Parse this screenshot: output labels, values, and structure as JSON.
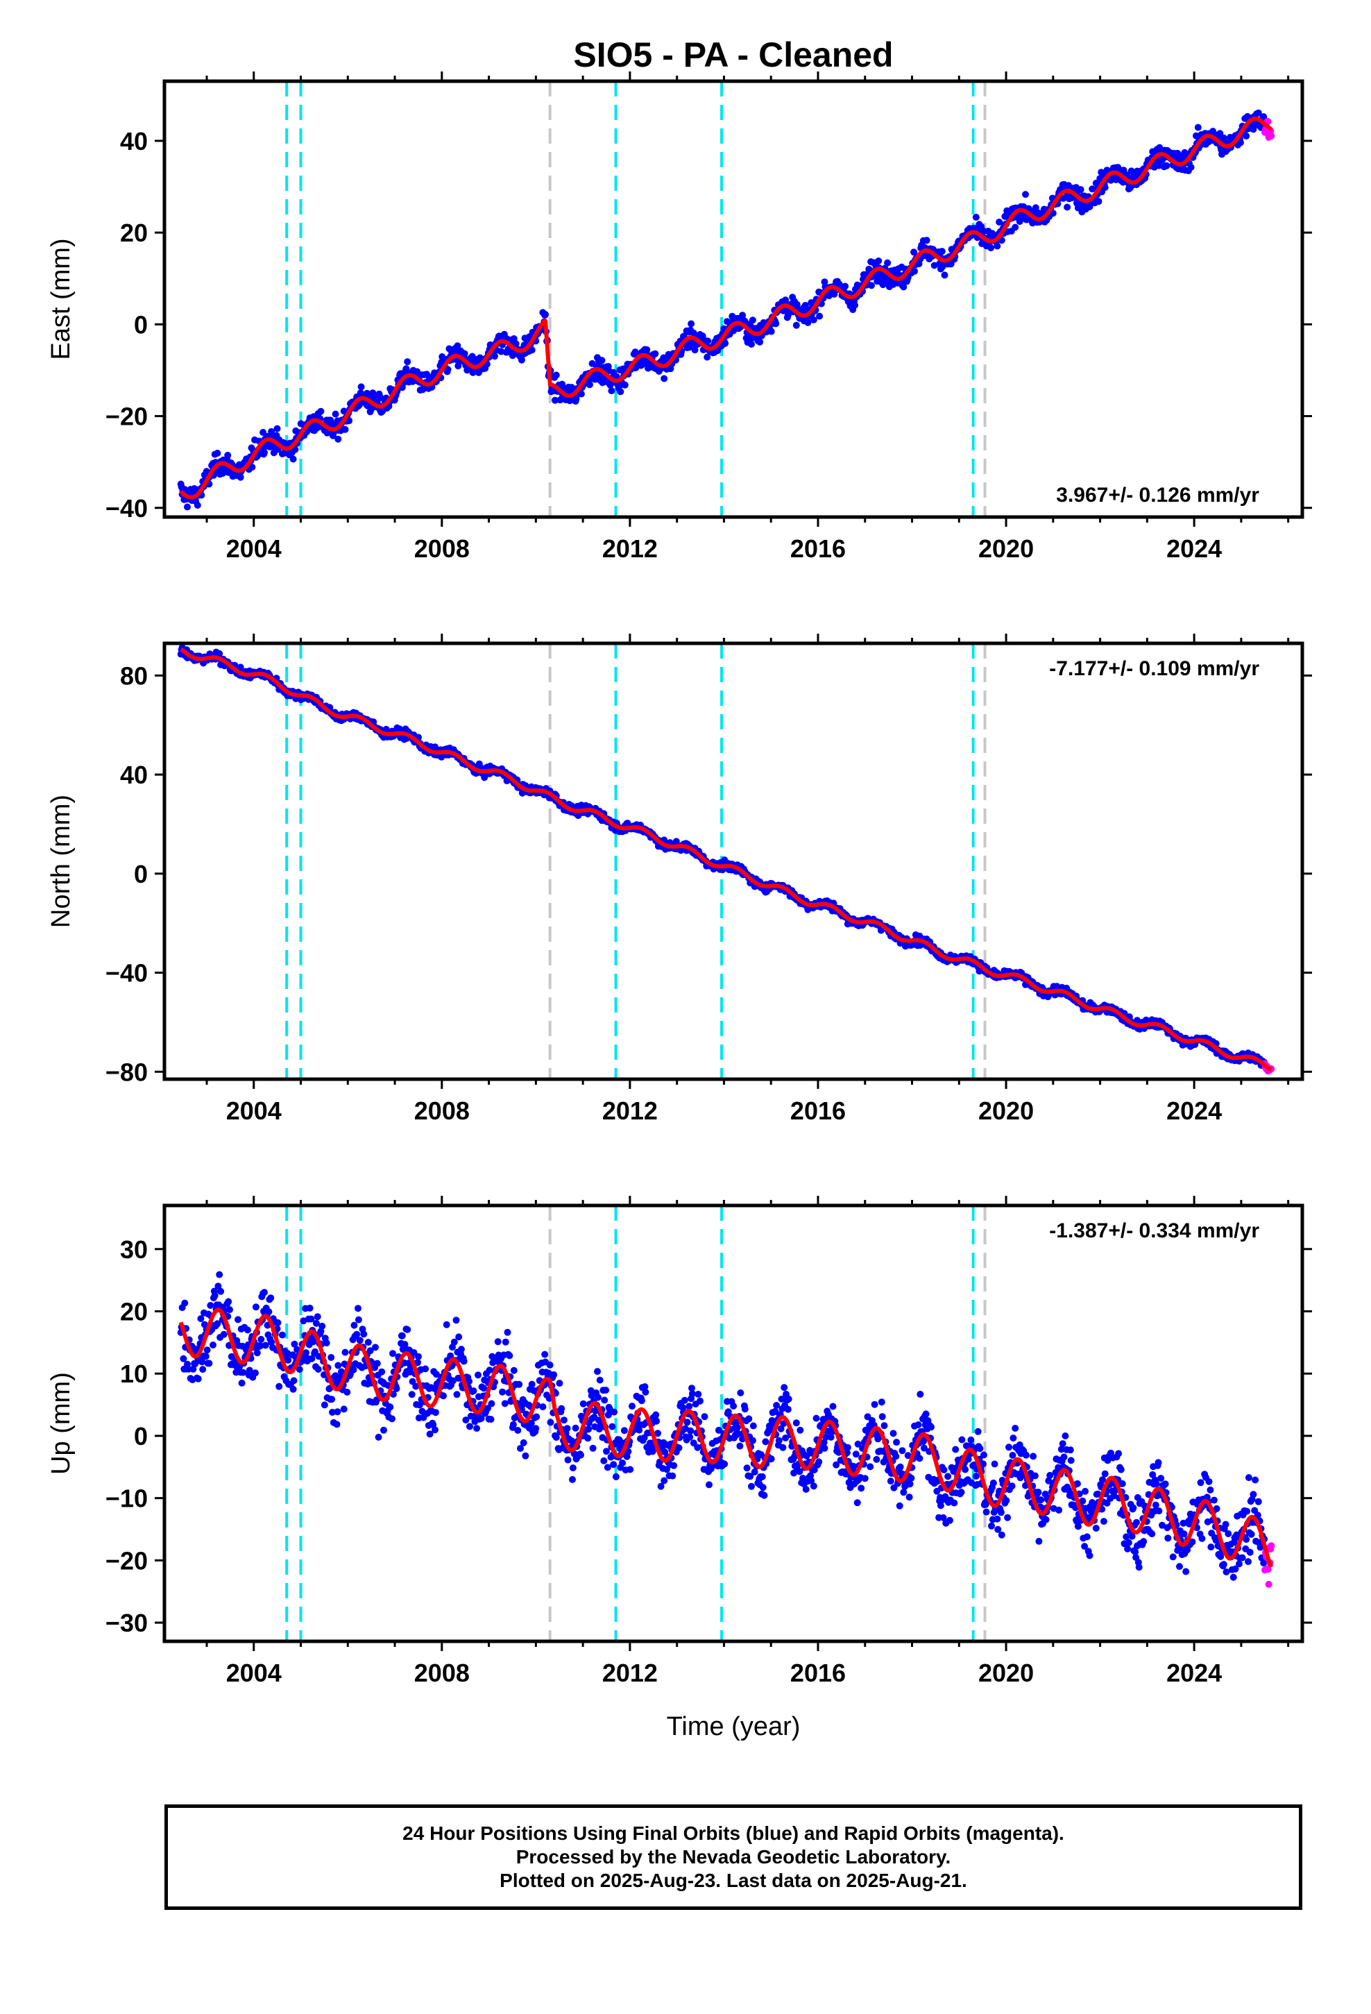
{
  "title": "SIO5  - PA - Cleaned",
  "x_axis_label": "Time (year)",
  "footer": {
    "line1": "24 Hour Positions Using Final Orbits (blue) and Rapid Orbits (magenta).",
    "line2": "Processed by the Nevada Geodetic Laboratory.",
    "line3": "Plotted on 2025-Aug-23. Last data on 2025-Aug-21."
  },
  "colors": {
    "final_orbits": "#0000ff",
    "rapid_orbits": "#ff00ff",
    "model": "#ff0000",
    "equipment_change": "#00e5ee",
    "earthquake": "#c8c8c8"
  },
  "chart_data": [
    {
      "type": "scatter",
      "ylabel": "East (mm)",
      "xlim": [
        2002.1,
        2026.3
      ],
      "ylim": [
        -42,
        53
      ],
      "x_ticks": [
        2004,
        2008,
        2012,
        2016,
        2020,
        2024
      ],
      "y_ticks": [
        -40,
        -20,
        0,
        20,
        40
      ],
      "rate_label": "3.967+/- 0.126 mm/yr",
      "rate_position": "bottom-right",
      "data_start": 2002.45,
      "data_end": 2025.64,
      "rapid_start": 2025.5,
      "offsets": [
        {
          "x": 2010.3,
          "dy": -14.0
        }
      ],
      "model_points": [
        [
          2002.5,
          -37
        ],
        [
          2003.5,
          -31
        ],
        [
          2004.5,
          -26
        ],
        [
          2005.5,
          -22
        ],
        [
          2006.5,
          -17
        ],
        [
          2007.5,
          -12
        ],
        [
          2008.5,
          -8
        ],
        [
          2009.5,
          -5
        ],
        [
          2010.2,
          -1
        ],
        [
          2010.3,
          -15
        ],
        [
          2011.5,
          -11
        ],
        [
          2012.5,
          -8
        ],
        [
          2013.5,
          -4
        ],
        [
          2014.5,
          -1
        ],
        [
          2015.5,
          3
        ],
        [
          2016.5,
          7
        ],
        [
          2017.5,
          11
        ],
        [
          2018.5,
          15
        ],
        [
          2019.5,
          19
        ],
        [
          2020.5,
          24
        ],
        [
          2021.5,
          28
        ],
        [
          2022.5,
          32
        ],
        [
          2023.5,
          36
        ],
        [
          2024.5,
          40
        ],
        [
          2025.6,
          44
        ]
      ],
      "model_seasonal_amplitude": 2.0,
      "scatter_spread": 2.0
    },
    {
      "type": "scatter",
      "ylabel": "North (mm)",
      "xlim": [
        2002.1,
        2026.3
      ],
      "ylim": [
        -83,
        93
      ],
      "x_ticks": [
        2004,
        2008,
        2012,
        2016,
        2020,
        2024
      ],
      "y_ticks": [
        -80,
        -40,
        0,
        40,
        80
      ],
      "rate_label": "-7.177+/- 0.109 mm/yr",
      "rate_position": "top-right",
      "data_start": 2002.45,
      "data_end": 2025.64,
      "rapid_start": 2025.5,
      "offsets": [],
      "model_points": [
        [
          2002.5,
          90
        ],
        [
          2003.5,
          84
        ],
        [
          2004.5,
          77
        ],
        [
          2005.5,
          67
        ],
        [
          2006.5,
          60
        ],
        [
          2007.5,
          53
        ],
        [
          2008.5,
          45
        ],
        [
          2009.5,
          38
        ],
        [
          2010.5,
          29
        ],
        [
          2011.5,
          22
        ],
        [
          2012.5,
          15
        ],
        [
          2013.5,
          7
        ],
        [
          2014.5,
          -1
        ],
        [
          2015.5,
          -9
        ],
        [
          2016.5,
          -16
        ],
        [
          2017.5,
          -23
        ],
        [
          2018.5,
          -31
        ],
        [
          2019.5,
          -38
        ],
        [
          2020.5,
          -44
        ],
        [
          2021.5,
          -51
        ],
        [
          2022.5,
          -58
        ],
        [
          2023.5,
          -64
        ],
        [
          2024.5,
          -71
        ],
        [
          2025.6,
          -78
        ]
      ],
      "model_seasonal_amplitude": 1.5,
      "scatter_spread": 1.5
    },
    {
      "type": "scatter",
      "ylabel": "Up (mm)",
      "xlim": [
        2002.1,
        2026.3
      ],
      "ylim": [
        -33,
        37
      ],
      "x_ticks": [
        2004,
        2008,
        2012,
        2016,
        2020,
        2024
      ],
      "y_ticks": [
        -30,
        -20,
        -10,
        0,
        10,
        20,
        30
      ],
      "rate_label": "-1.387+/- 0.334 mm/yr",
      "rate_position": "top-right",
      "data_start": 2002.45,
      "data_end": 2025.64,
      "rapid_start": 2025.5,
      "offsets": [],
      "model_points": [
        [
          2002.5,
          17
        ],
        [
          2003.5,
          16
        ],
        [
          2004.5,
          15
        ],
        [
          2005.5,
          12
        ],
        [
          2006.5,
          10
        ],
        [
          2007.5,
          9
        ],
        [
          2008.5,
          8
        ],
        [
          2009.5,
          7
        ],
        [
          2010.3,
          5
        ],
        [
          2010.4,
          2
        ],
        [
          2011.5,
          1
        ],
        [
          2012.5,
          0
        ],
        [
          2013.5,
          0
        ],
        [
          2014.5,
          -1
        ],
        [
          2015.5,
          -1
        ],
        [
          2016.5,
          -2
        ],
        [
          2017.5,
          -3
        ],
        [
          2018.5,
          -4
        ],
        [
          2019.5,
          -7
        ],
        [
          2020.5,
          -8
        ],
        [
          2021.5,
          -10
        ],
        [
          2022.5,
          -11
        ],
        [
          2023.5,
          -13
        ],
        [
          2024.5,
          -15
        ],
        [
          2025.6,
          -18
        ]
      ],
      "model_seasonal_amplitude": 4.0,
      "scatter_spread": 4.5
    }
  ],
  "vertical_markers": [
    {
      "year": 2004.7,
      "kind": "equipment_change"
    },
    {
      "year": 2005.0,
      "kind": "equipment_change"
    },
    {
      "year": 2010.3,
      "kind": "earthquake"
    },
    {
      "year": 2011.7,
      "kind": "equipment_change"
    },
    {
      "year": 2013.95,
      "kind": "equipment_change"
    },
    {
      "year": 2019.3,
      "kind": "equipment_change"
    },
    {
      "year": 2019.55,
      "kind": "earthquake"
    }
  ]
}
